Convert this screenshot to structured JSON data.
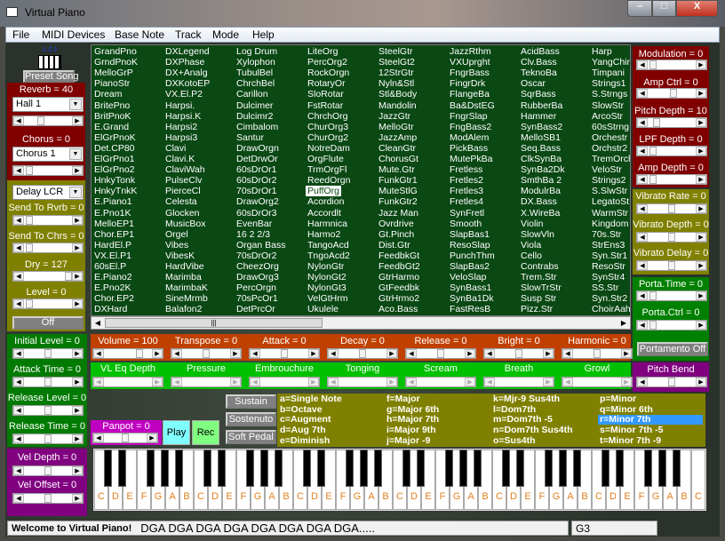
{
  "window": {
    "title": "Virtual Piano",
    "icon": "piano-icon"
  },
  "menu": [
    "File",
    "MIDI Devices",
    "Base Note",
    "Track",
    "Mode",
    "Help"
  ],
  "preset_song": "Preset Song",
  "effects": {
    "reverb": {
      "label": "Reverb = 40",
      "type": "Hall 1",
      "pos": 0.33
    },
    "chorus": {
      "label": "Chorus = 0",
      "type": "Chorus 1",
      "pos": 0.05
    },
    "delay": {
      "type": "Delay LCR"
    },
    "send_rvrb": {
      "label": "Send To Rvrb = 0",
      "pos": 0.05
    },
    "send_chrs": {
      "label": "Send To Chrs = 0",
      "pos": 0.05
    },
    "dry": {
      "label": "Dry = 127",
      "pos": 1.0
    },
    "level": {
      "label": "Level = 0",
      "pos": 0.05
    },
    "off": "Off"
  },
  "envelope": {
    "initial_level": {
      "label": "Initial Level = 0",
      "pos": 0.5
    },
    "attack_time": {
      "label": "Attack Time = 0",
      "pos": 0.5
    },
    "release_level": {
      "label": "Release Level = 0",
      "pos": 0.5
    },
    "release_time": {
      "label": "Release Time = 0",
      "pos": 0.5
    }
  },
  "velocity": {
    "vel_depth": {
      "label": "Vel Depth = 0",
      "pos": 0.5
    },
    "vel_offset": {
      "label": "Vel Offset = 0",
      "pos": 0.5
    }
  },
  "instruments": {
    "selected": "PuffOrg",
    "columns": [
      [
        "GrandPno",
        "GrndPnoK",
        "MelloGrP",
        "PianoStr",
        "Dream",
        "BritePno",
        "BritPnoK",
        "E.Grand",
        "ElGrPnoK",
        "Det.CP80",
        "ElGrPno1",
        "ElGrPno2",
        "HnkyTonk",
        "HnkyTnkK",
        "E.Piano1",
        "E.Pno1K",
        "MelloEP1",
        "Chor.EP1",
        "HardEl.P",
        "VX.El.P1",
        "60sEl.P",
        "E.Piano2",
        "E.Pno2K",
        "Chor.EP2",
        "DXHard"
      ],
      [
        "DXLegend",
        "DXPhase",
        "DX+Analg",
        "DXKotoEP",
        "VX.El.P2",
        "Harpsi.",
        "Harpsi.K",
        "Harpsi2",
        "Harpsi3",
        "Clavi",
        "Clavi.K",
        "ClaviWah",
        "PulseClv",
        "PierceCl",
        "Celesta",
        "Glocken",
        "MusicBox",
        "Orgel",
        "Vibes",
        "VibesK",
        "HardVibe",
        "Marimba",
        "MarimbaK",
        "SineMrmb",
        "Balafon2"
      ],
      [
        "Log Drum",
        "Xylophon",
        "TubulBel",
        "ChrchBel",
        "Carillon",
        "Dulcimer",
        "Dulcimr2",
        "Cimbalom",
        "Santur",
        "DrawOrgn",
        "DetDrwOr",
        "60sDrOr1",
        "60sDrOr2",
        "70sDrOr1",
        "DrawOrg2",
        "60sDrOr3",
        "EvenBar",
        "16 2 2/3",
        "Organ Bass",
        "70sDrOr2",
        "CheezOrg",
        "DrawOrg3",
        "PercOrgn",
        "70sPcOr1",
        "DetPrcOr"
      ],
      [
        "LiteOrg",
        "PercOrg2",
        "RockOrgn",
        "RotaryOr",
        "SloRotar",
        "FstRotar",
        "ChrchOrg",
        "ChurOrg3",
        "ChurOrg2",
        "NotreDam",
        "OrgFlute",
        "TrmOrgFl",
        "ReedOrgn",
        "PuffOrg",
        "Acordion",
        "Accordlt",
        "Harmnica",
        "Harmo2",
        "TangoAcd",
        "TngoAcd2",
        "NylonGtr",
        "NylonGt2",
        "NylonGt3",
        "VelGtHrm",
        "Ukulele"
      ],
      [
        "SteelGtr",
        "SteelGt2",
        "12StrGtr",
        "Nyln&Stl",
        "Stl&Body",
        "Mandolin",
        "JazzGtr",
        "MelloGtr",
        "JazzAmp",
        "CleanGtr",
        "ChorusGt",
        "Mute.Gtr",
        "FunkGtr1",
        "MuteStlG",
        "FunkGtr2",
        "Jazz Man",
        "Ovrdrive",
        "Gt.Pinch",
        "Dist.Gtr",
        "FeedbkGt",
        "FeedbGt2",
        "GtrHarmo",
        "GtFeedbk",
        "GtrHrmo2",
        "Aco.Bass"
      ],
      [
        "JazzRthm",
        "VXUprght",
        "FngrBass",
        "FingrDrk",
        "FlangeBa",
        "Ba&DstEG",
        "FngrSlap",
        "FngBass2",
        "ModAlem",
        "PickBass",
        "MutePkBa",
        "Fretless",
        "Fretles2",
        "Fretles3",
        "Fretles4",
        "SynFretl",
        "Smooth",
        "SlapBas1",
        "ResoSlap",
        "PunchThm",
        "SlapBas2",
        "VeloSlap",
        "SynBass1",
        "SynBa1Dk",
        "FastResB"
      ],
      [
        "AcidBass",
        "Clv.Bass",
        "TeknoBa",
        "Oscar",
        "SqrBass",
        "RubberBa",
        "Hammer",
        "SynBass2",
        "MelloSB1",
        "Seq.Bass",
        "ClkSynBa",
        "SynBa2Dk",
        "SmthBa 2",
        "ModulrBa",
        "DX.Bass",
        "X.WireBa",
        "Violin",
        "SlowVln",
        "Viola",
        "Cello",
        "Contrabs",
        "Trem.Str",
        "SlowTrStr",
        "Susp Str",
        "Pizz.Str"
      ],
      [
        "Harp",
        "YangChin",
        "Timpani",
        "Strings1",
        "S.Strngs",
        "SlowStr",
        "ArcoStr",
        "60sStrng",
        "Orchestr",
        "Orchstr2",
        "TremOrch",
        "VeloStr",
        "Strings2",
        "S.SlwStr",
        "LegatoSt",
        "WarmStr",
        "Kingdom",
        "70s.Str",
        "StrEns3",
        "Syn.Str1",
        "ResoStr",
        "SynStr4",
        "SS.Str",
        "Syn.Str2",
        "ChoirAah"
      ]
    ]
  },
  "tone": [
    {
      "label": "Volume = 100",
      "pos": 0.79
    },
    {
      "label": "Transpose = 0",
      "pos": 0.5
    },
    {
      "label": "Attack = 0",
      "pos": 0.5
    },
    {
      "label": "Decay = 0",
      "pos": 0.5
    },
    {
      "label": "Release = 0",
      "pos": 0.5
    },
    {
      "label": "Bright = 0",
      "pos": 0.5
    },
    {
      "label": "Harmonic = 0",
      "pos": 0.5
    }
  ],
  "vl": [
    "VL Eq Depth",
    "Pressure",
    "Embrouchure",
    "Tonging",
    "Scream",
    "Breath",
    "Growl"
  ],
  "controllers": {
    "modulation": {
      "label": "Modulation = 0",
      "pos": 0.05
    },
    "amp_ctrl": {
      "label": "Amp Ctrl = 0",
      "pos": 0.55
    },
    "pitch_depth": {
      "label": "Pitch Depth = 10",
      "pos": 0.12
    },
    "lpf_depth": {
      "label": "LPF Depth = 0",
      "pos": 0.05
    },
    "amp_depth": {
      "label": "Amp Depth = 0",
      "pos": 0.05
    },
    "vibrato_rate": {
      "label": "Vibrato Rate = 0",
      "pos": 0.5
    },
    "vibrato_depth": {
      "label": "Vibrato Depth = 0",
      "pos": 0.5
    },
    "vibrato_delay": {
      "label": "Vibrato Delay = 0",
      "pos": 0.5
    },
    "porta_time": {
      "label": "Porta.Time = 0",
      "pos": 0.05
    },
    "porta_ctrl": {
      "label": "Porta.Ctrl = 0",
      "pos": 0.05
    },
    "portamento": "Portamento Off",
    "pitch_bend": {
      "label": "Pitch Bend",
      "pos": 0.5
    }
  },
  "pedals": [
    "Sustain",
    "Sostenuto",
    "Soft Pedal"
  ],
  "panpot": {
    "label": "Panpot = 0",
    "pos": 0.5
  },
  "play": "Play",
  "rec": "Rec",
  "chords": {
    "selected": "r=Minor 7th",
    "items": [
      "a=Single Note",
      "b=Octave",
      "c=Augment",
      "d=Aug 7th",
      "e=Diminish",
      "f=Major",
      "g=Major 6th",
      "h=Major 7th",
      "i=Major 9th",
      "j=Major -9",
      "k=Mjr-9 Sus4th",
      "l=Dom7th",
      "m=Dom7th -5",
      "n=Dom7th Sus4th",
      "o=Sus4th",
      "p=Minor",
      "q=Minor 6th",
      "r=Minor 7th",
      "s=Minor 7th -5",
      "t=Minor 7th -9"
    ]
  },
  "keyboard": {
    "white_keys": [
      "C",
      "D",
      "E",
      "F",
      "G",
      "A",
      "B",
      "C",
      "D",
      "E",
      "F",
      "G",
      "A",
      "B",
      "C",
      "D",
      "E",
      "F",
      "G",
      "A",
      "B",
      "C",
      "D",
      "E",
      "F",
      "G",
      "A",
      "B",
      "C",
      "D",
      "E",
      "F",
      "G",
      "A",
      "B",
      "C",
      "D",
      "E",
      "F",
      "G",
      "A",
      "B",
      "C"
    ]
  },
  "status": {
    "welcome": "Welcome to Virtual Piano!",
    "sequence": "DGA DGA DGA DGA DGA DGA DGA DGA.....",
    "note": "G3"
  },
  "colors": {
    "effects": "#800000",
    "delay": "#808000",
    "list": "#0a4814",
    "tone": "#c04000",
    "vl": "#00c000",
    "envelope": "#008000",
    "velocity": "#800080",
    "selection": "#3399ff",
    "key_label": "#e08020"
  }
}
